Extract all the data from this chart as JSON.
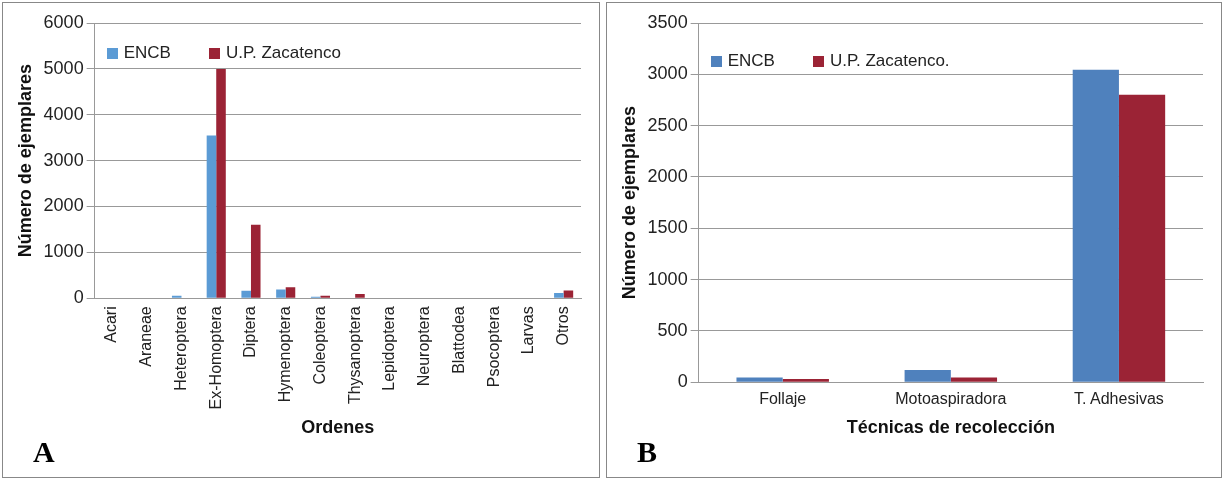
{
  "chart_data": [
    {
      "type": "bar",
      "xlabel": "Ordenes",
      "ylabel": "Número de ejemplares",
      "annotations": [
        "A"
      ],
      "categories": [
        "Acari",
        "Araneae",
        "Heteroptera",
        "Ex-Homoptera",
        "Diptera",
        "Hymenoptera",
        "Coleoptera",
        "Thysanoptera",
        "Lepidoptera",
        "Neuroptera",
        "Blattodea",
        "Psocoptera",
        "Larvas",
        "Otros"
      ],
      "series": [
        {
          "name": "ENCB",
          "color": "#5b9bd5",
          "values": [
            0,
            0,
            55,
            3550,
            165,
            190,
            35,
            0,
            0,
            0,
            0,
            0,
            0,
            115
          ]
        },
        {
          "name": "U.P. Zacatenco",
          "color": "#9b2335",
          "values": [
            0,
            0,
            0,
            5000,
            1600,
            240,
            55,
            90,
            0,
            0,
            0,
            0,
            0,
            170
          ]
        }
      ],
      "ylim": [
        0,
        6000
      ],
      "yticks": [
        0,
        1000,
        2000,
        3000,
        4000,
        5000,
        6000
      ],
      "grid": "y",
      "legend": "top left"
    },
    {
      "type": "bar",
      "xlabel": "Técnicas de recolección",
      "ylabel": "Número de ejemplares",
      "annotations": [
        "B"
      ],
      "categories": [
        "Follaje",
        "Motoaspiradora",
        "T. Adhesivas"
      ],
      "series": [
        {
          "name": "ENCB",
          "color": "#4f81bd",
          "values": [
            45,
            120,
            3045
          ]
        },
        {
          "name": "U.P. Zacatenco.",
          "color": "#9b2335",
          "values": [
            30,
            45,
            2800
          ]
        }
      ],
      "ylim": [
        0,
        3500
      ],
      "yticks": [
        0,
        500,
        1000,
        1500,
        2000,
        2500,
        3000,
        3500
      ],
      "grid": "y",
      "legend": "top left"
    }
  ]
}
